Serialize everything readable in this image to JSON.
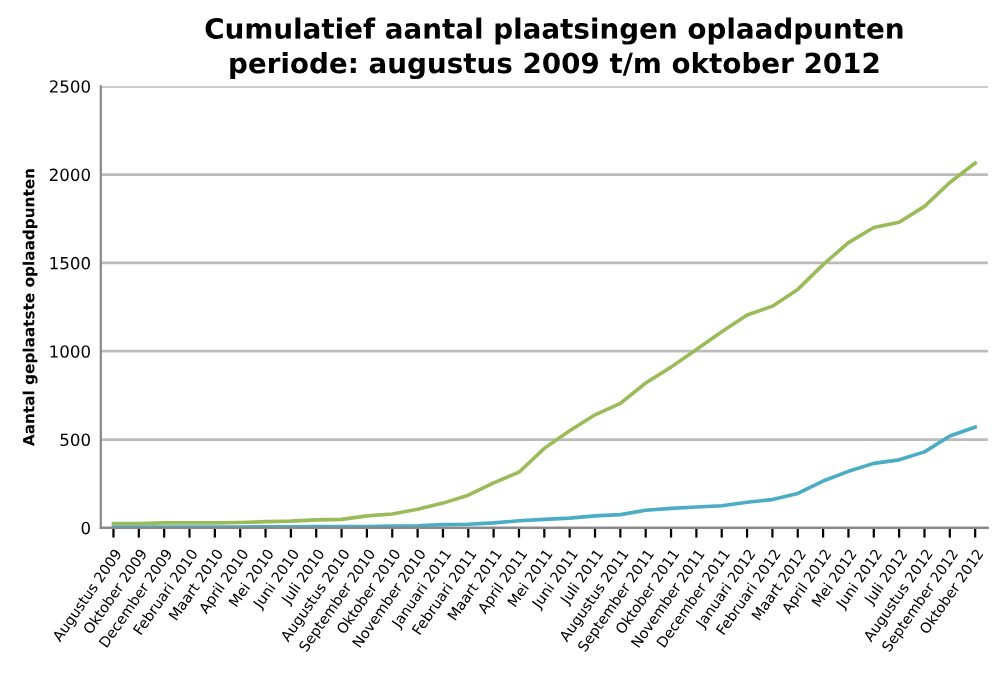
{
  "chart_data": {
    "type": "line",
    "title": "Cumulatief aantal plaatsingen oplaadpunten",
    "subtitle": "periode: augustus 2009 t/m oktober 2012",
    "ylabel": "Aantal geplaatste oplaadpunten",
    "categories": [
      "Augustus 2009",
      "Oktober 2009",
      "December 2009",
      "Februari 2010",
      "Maart 2010",
      "April 2010",
      "Mei 2010",
      "Juni 2010",
      "Juli 2010",
      "Augustus 2010",
      "September 2010",
      "Oktober 2010",
      "November 2010",
      "Januari 2011",
      "Februari 2011",
      "Maart 2011",
      "April 2011",
      "Mei 2011",
      "Juni 2011",
      "Juli 2011",
      "Augustus 2011",
      "September 2011",
      "Oktober 2011",
      "November 2011",
      "December 2011",
      "Januari 2012",
      "Februari 2012",
      "Maart 2012",
      "April 2012",
      "Mei 2012",
      "Juni 2012",
      "Juli 2012",
      "Augustus 2012",
      "September 2012",
      "Oktober 2012"
    ],
    "series": [
      {
        "color": "#9bbb59",
        "values": [
          25,
          25,
          28,
          28,
          28,
          30,
          35,
          38,
          45,
          48,
          68,
          78,
          105,
          140,
          185,
          255,
          315,
          450,
          550,
          640,
          705,
          820,
          910,
          1010,
          1110,
          1205,
          1255,
          1350,
          1490,
          1615,
          1700,
          1730,
          1820,
          1955,
          2065
        ]
      },
      {
        "color": "#4bacc6",
        "values": [
          5,
          5,
          5,
          5,
          5,
          5,
          6,
          6,
          7,
          7,
          8,
          10,
          12,
          18,
          20,
          28,
          40,
          48,
          55,
          68,
          75,
          100,
          110,
          118,
          125,
          145,
          160,
          195,
          265,
          320,
          365,
          385,
          430,
          520,
          570
        ]
      }
    ],
    "ylim": [
      0,
      2500
    ],
    "yticks": [
      0,
      500,
      1000,
      1500,
      2000,
      2500
    ],
    "grid": "y",
    "legend": false
  }
}
